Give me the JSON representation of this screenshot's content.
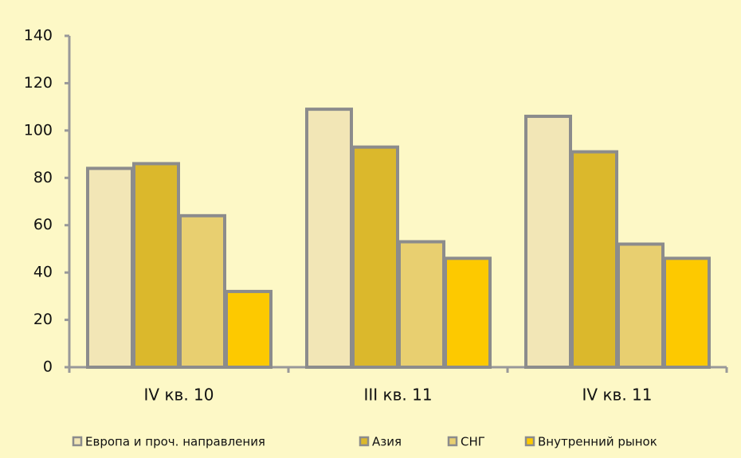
{
  "chart_data": {
    "type": "bar",
    "categories": [
      "IV кв. 10",
      "III кв. 11",
      "IV кв. 11"
    ],
    "series": [
      {
        "name": "Европа и проч. направления",
        "color": "#f2e6b6",
        "values": [
          84,
          109,
          106
        ]
      },
      {
        "name": "Азия",
        "color": "#dbb82c",
        "values": [
          86,
          93,
          91
        ]
      },
      {
        "name": "СНГ",
        "color": "#e8cf70",
        "values": [
          64,
          53,
          52
        ]
      },
      {
        "name": "Внутренний рынок",
        "color": "#fdc900",
        "values": [
          32,
          46,
          46
        ]
      }
    ],
    "ylim": [
      0,
      140
    ],
    "yticks": [
      0,
      20,
      40,
      60,
      80,
      100,
      120,
      140
    ],
    "legend": "bottom",
    "grid": false
  }
}
